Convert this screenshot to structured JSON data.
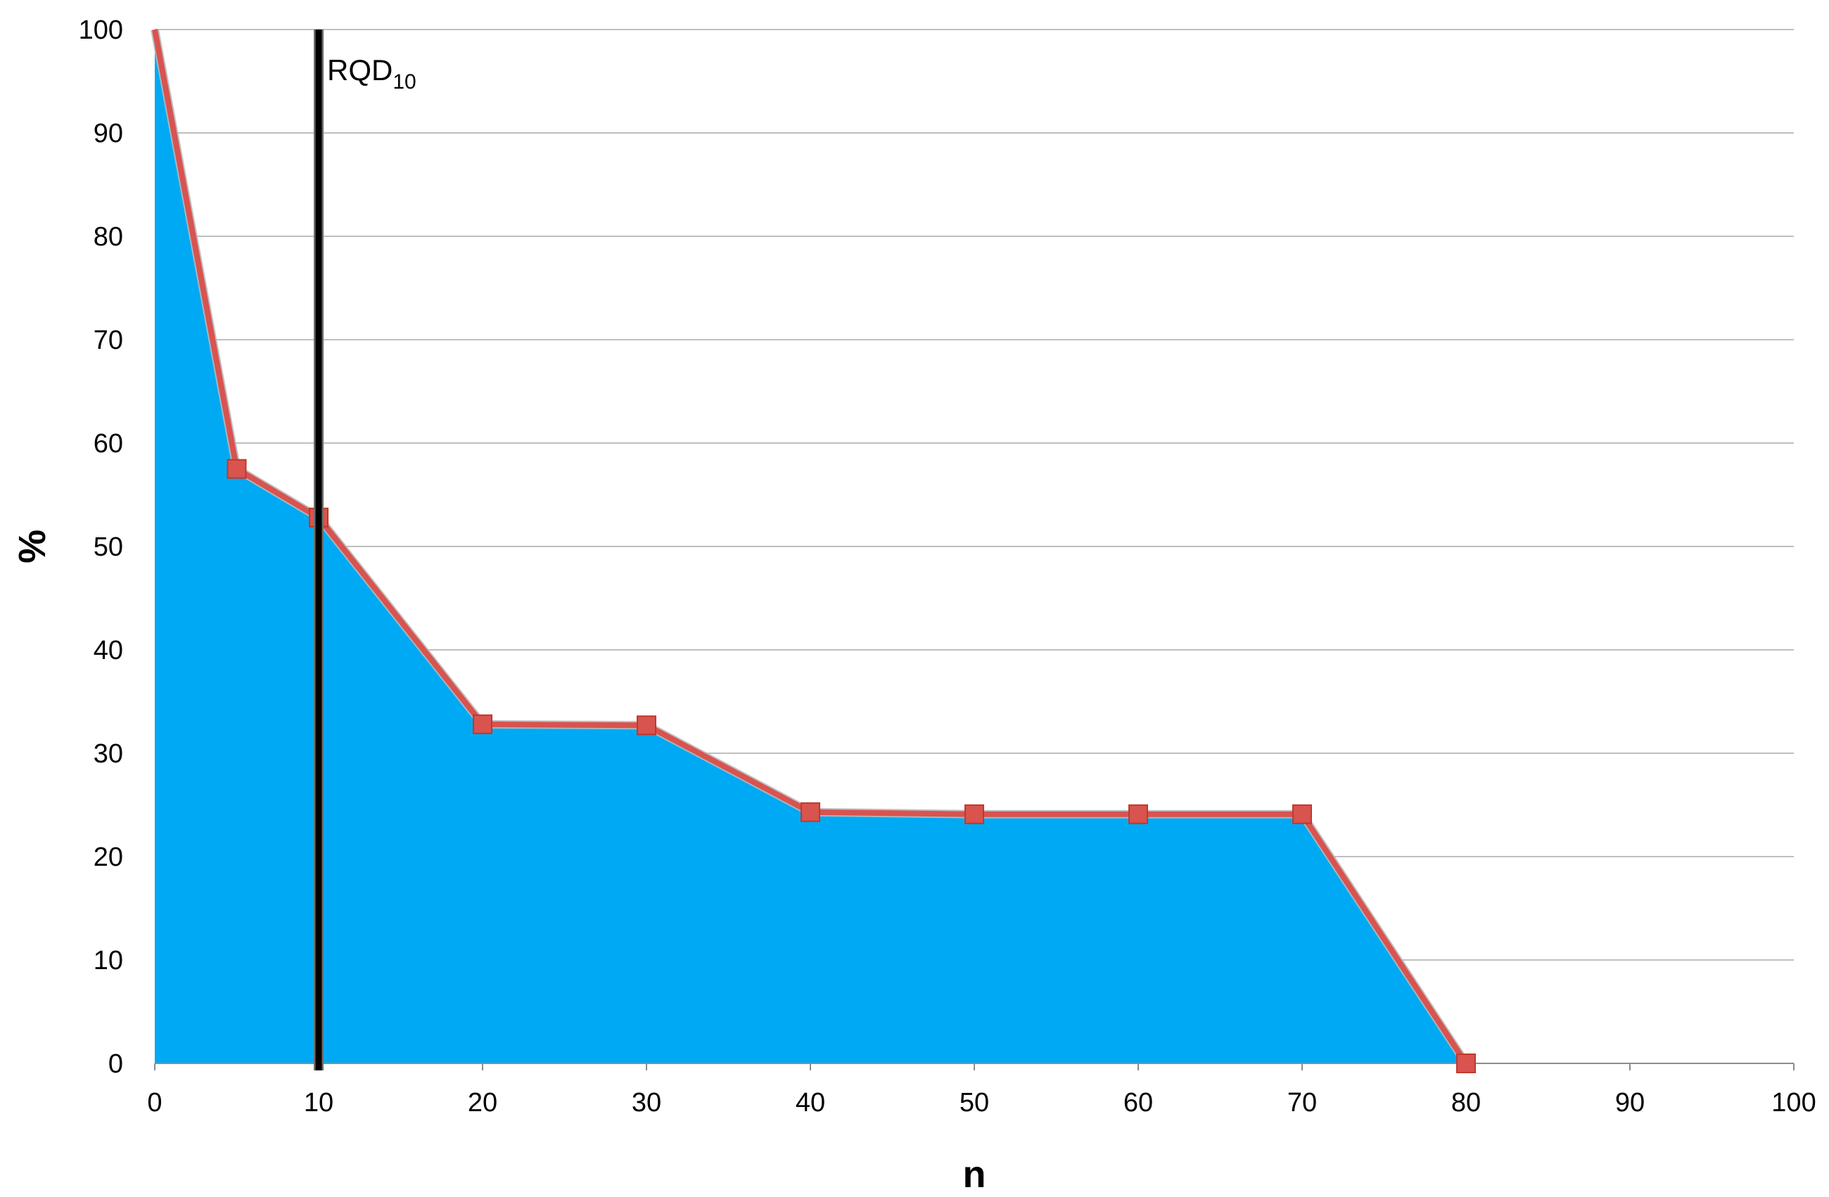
{
  "chart_data": {
    "type": "area",
    "xlabel": "n",
    "ylabel": "%",
    "xlim": [
      0,
      100
    ],
    "ylim": [
      0,
      100
    ],
    "x_ticks": [
      0,
      10,
      20,
      30,
      40,
      50,
      60,
      70,
      80,
      90,
      100
    ],
    "y_ticks": [
      0,
      10,
      20,
      30,
      40,
      50,
      60,
      70,
      80,
      90,
      100
    ],
    "grid": "horizontal",
    "series": [
      {
        "x": [
          0,
          5,
          10,
          20,
          30,
          40,
          50,
          60,
          70,
          80
        ],
        "y": [
          100,
          57.5,
          52.8,
          32.8,
          32.7,
          24.3,
          24.1,
          24.1,
          24.1,
          0
        ],
        "fill_color": "#00A9F4",
        "line_color": "#D9534F",
        "marker": "square"
      }
    ],
    "annotations": [
      {
        "type": "vertical-line",
        "x": 10,
        "y_from": 0,
        "y_to": 100,
        "label": "RQD",
        "label_subscript": "10",
        "color": "#000000"
      }
    ],
    "colors": {
      "grid": "#BFBFBF",
      "axis": "#8C8C8C"
    }
  }
}
